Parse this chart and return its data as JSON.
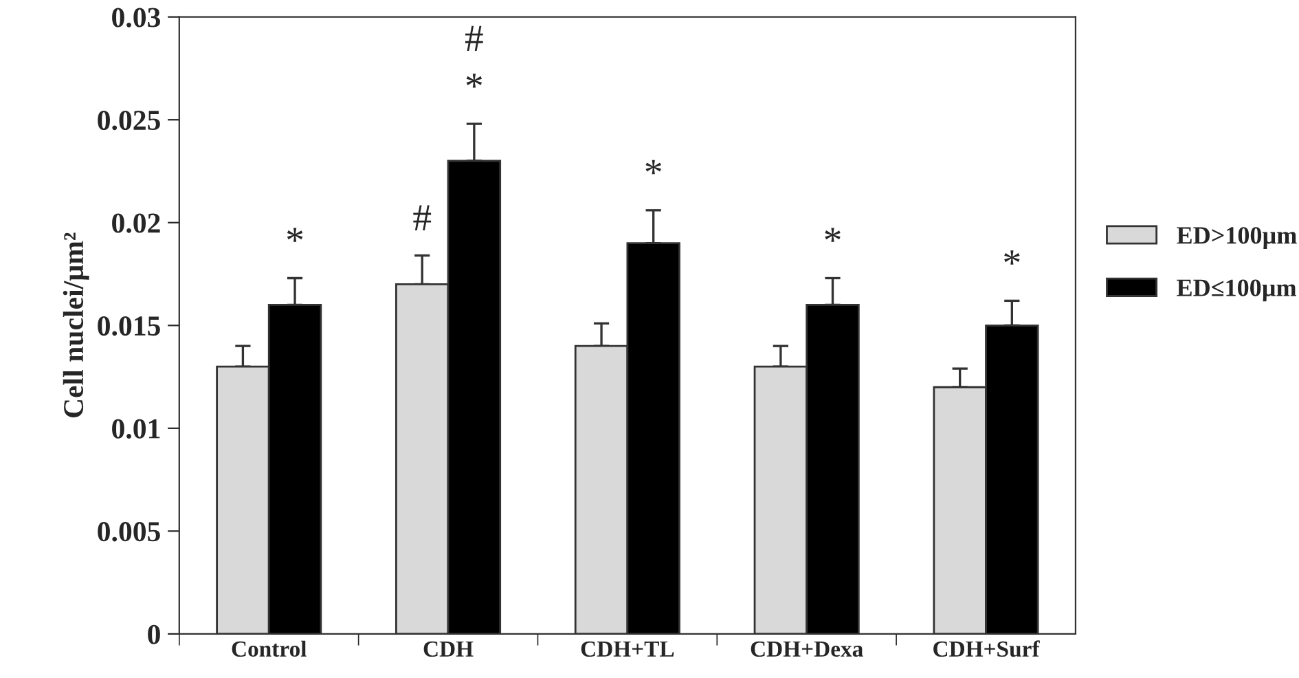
{
  "chart_data": {
    "type": "bar",
    "ylabel": "Cell nuclei/µm²",
    "categories": [
      "Control",
      "CDH",
      "CDH+TL",
      "CDH+Dexa",
      "CDH+Surf"
    ],
    "series": [
      {
        "name": "ED>100µm",
        "color": "#d9d9d9",
        "values": [
          0.013,
          0.017,
          0.014,
          0.013,
          0.012
        ],
        "errors": [
          0.001,
          0.0014,
          0.0011,
          0.001,
          0.0009
        ]
      },
      {
        "name": "ED≤100µm",
        "color": "#000000",
        "values": [
          0.016,
          0.023,
          0.019,
          0.016,
          0.015
        ],
        "errors": [
          0.0013,
          0.0018,
          0.0016,
          0.0013,
          0.0012
        ]
      }
    ],
    "ylim": [
      0,
      0.03
    ],
    "yticks": [
      0,
      0.005,
      0.01,
      0.015,
      0.02,
      0.025,
      0.03
    ],
    "annotations": [
      {
        "text": "*",
        "x": "Control",
        "y": 0.016
      },
      {
        "text": "#",
        "x": "CDH",
        "y": 0.017
      },
      {
        "text": "*",
        "x": "CDH",
        "y": 0.023
      },
      {
        "text": "#",
        "x": "CDH",
        "y": 0.023
      },
      {
        "text": "*",
        "x": "CDH+TL",
        "y": 0.019
      },
      {
        "text": "*",
        "x": "CDH+Dexa",
        "y": 0.016
      },
      {
        "text": "*",
        "x": "CDH+Surf",
        "y": 0.015
      }
    ],
    "grid": false,
    "legend": "right"
  }
}
